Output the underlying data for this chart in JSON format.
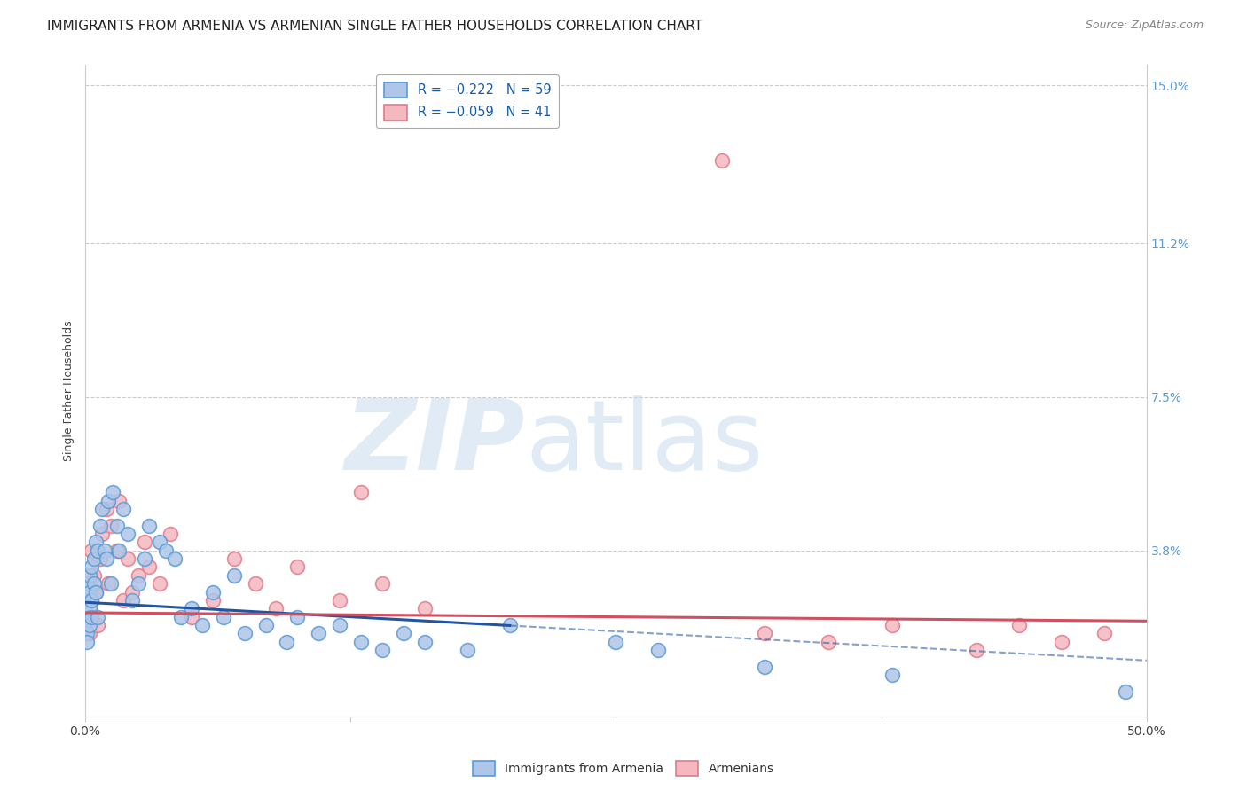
{
  "title": "IMMIGRANTS FROM ARMENIA VS ARMENIAN SINGLE FATHER HOUSEHOLDS CORRELATION CHART",
  "source": "Source: ZipAtlas.com",
  "ylabel": "Single Father Households",
  "xlim": [
    0.0,
    0.5
  ],
  "ylim": [
    -0.002,
    0.155
  ],
  "background_color": "#ffffff",
  "grid_color": "#cccccc",
  "title_fontsize": 11,
  "watermark_zip_color": "#c5d8ed",
  "watermark_atlas_color": "#c5d8ed",
  "series_blue": {
    "name": "Immigrants from Armenia",
    "color_face": "#aec6e8",
    "color_edge": "#5b9bd5",
    "line_color": "#2255a0",
    "line_solid_end": 0.2,
    "intercept": 0.0255,
    "slope": -0.028
  },
  "series_pink": {
    "name": "Armenians",
    "color_face": "#f4b8c1",
    "color_edge": "#e07b8a",
    "line_color": "#d05060",
    "line_solid_end": 0.5,
    "intercept": 0.023,
    "slope": -0.004
  },
  "blue_x": [
    0.001,
    0.001,
    0.001,
    0.001,
    0.001,
    0.002,
    0.002,
    0.002,
    0.002,
    0.003,
    0.003,
    0.003,
    0.004,
    0.004,
    0.005,
    0.005,
    0.006,
    0.006,
    0.007,
    0.008,
    0.009,
    0.01,
    0.011,
    0.012,
    0.013,
    0.015,
    0.016,
    0.018,
    0.02,
    0.022,
    0.025,
    0.028,
    0.03,
    0.035,
    0.038,
    0.042,
    0.045,
    0.05,
    0.055,
    0.06,
    0.065,
    0.07,
    0.075,
    0.085,
    0.095,
    0.1,
    0.11,
    0.12,
    0.13,
    0.14,
    0.15,
    0.16,
    0.18,
    0.2,
    0.25,
    0.27,
    0.32,
    0.38,
    0.49
  ],
  "blue_y": [
    0.022,
    0.018,
    0.026,
    0.03,
    0.016,
    0.024,
    0.028,
    0.02,
    0.032,
    0.026,
    0.034,
    0.022,
    0.03,
    0.036,
    0.04,
    0.028,
    0.038,
    0.022,
    0.044,
    0.048,
    0.038,
    0.036,
    0.05,
    0.03,
    0.052,
    0.044,
    0.038,
    0.048,
    0.042,
    0.026,
    0.03,
    0.036,
    0.044,
    0.04,
    0.038,
    0.036,
    0.022,
    0.024,
    0.02,
    0.028,
    0.022,
    0.032,
    0.018,
    0.02,
    0.016,
    0.022,
    0.018,
    0.02,
    0.016,
    0.014,
    0.018,
    0.016,
    0.014,
    0.02,
    0.016,
    0.014,
    0.01,
    0.008,
    0.004
  ],
  "pink_x": [
    0.001,
    0.002,
    0.002,
    0.003,
    0.003,
    0.004,
    0.005,
    0.006,
    0.007,
    0.008,
    0.01,
    0.011,
    0.012,
    0.015,
    0.016,
    0.018,
    0.02,
    0.022,
    0.025,
    0.028,
    0.03,
    0.035,
    0.04,
    0.05,
    0.06,
    0.07,
    0.08,
    0.09,
    0.1,
    0.12,
    0.14,
    0.16,
    0.3,
    0.32,
    0.35,
    0.38,
    0.42,
    0.44,
    0.46,
    0.48,
    0.13
  ],
  "pink_y": [
    0.022,
    0.03,
    0.018,
    0.026,
    0.038,
    0.032,
    0.028,
    0.02,
    0.036,
    0.042,
    0.048,
    0.03,
    0.044,
    0.038,
    0.05,
    0.026,
    0.036,
    0.028,
    0.032,
    0.04,
    0.034,
    0.03,
    0.042,
    0.022,
    0.026,
    0.036,
    0.03,
    0.024,
    0.034,
    0.026,
    0.03,
    0.024,
    0.132,
    0.018,
    0.016,
    0.02,
    0.014,
    0.02,
    0.016,
    0.018,
    0.052
  ]
}
